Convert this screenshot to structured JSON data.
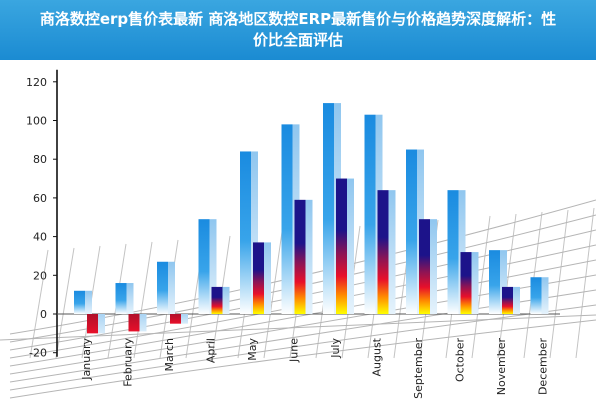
{
  "page": {
    "title": "商洛数控erp售价表最新 商洛地区数控ERP最新售价与价格趋势深度解析：性价比全面评估"
  },
  "chart_data": {
    "type": "bar",
    "title": "",
    "xlabel": "",
    "ylabel": "",
    "ylim": [
      -20,
      120
    ],
    "yticks": [
      -20,
      0,
      20,
      40,
      60,
      80,
      100,
      120
    ],
    "categories": [
      "January",
      "February",
      "March",
      "April",
      "May",
      "June",
      "July",
      "August",
      "September",
      "October",
      "November",
      "December"
    ],
    "series": [
      {
        "values": [
          12,
          16,
          27,
          49,
          84,
          98,
          109,
          103,
          85,
          64,
          33,
          19
        ]
      },
      {
        "values": [
          -10,
          -9,
          -5,
          14,
          37,
          59,
          70,
          64,
          49,
          32,
          14,
          null
        ]
      }
    ],
    "colors": {
      "blue_bar": "#1a8be0",
      "dark_bar": "#1c138a",
      "warm_low": "#ffff00",
      "warm_mid": "#e8102a",
      "title_bg": "#1b8bd2"
    },
    "grid": false,
    "legend": "none"
  }
}
